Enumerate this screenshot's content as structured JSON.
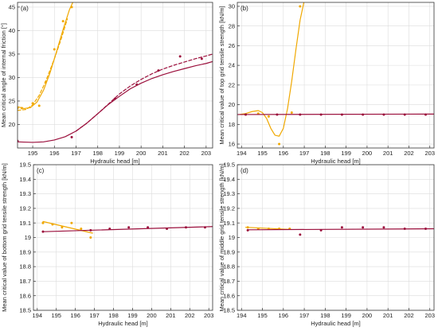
{
  "colors": {
    "dark_red": "#9b0f3c",
    "orange": "#f0a800",
    "axis": "#333333",
    "grid": "#dcdcdc"
  },
  "chart_data": [
    {
      "id": "a",
      "type": "line",
      "panel_label": "(a)",
      "xlabel": "Hydraulic head [m]",
      "ylabel": "Mean critical angle of internal friction [°]",
      "xlim": [
        194.3,
        203.3
      ],
      "ylim": [
        15,
        46
      ],
      "xticks": [
        195,
        196,
        197,
        198,
        199,
        200,
        201,
        202,
        203
      ],
      "yticks": [
        20,
        25,
        30,
        35,
        40,
        45
      ],
      "grid": true,
      "series": [
        {
          "color": "orange",
          "kind": "points",
          "x": [
            194.3,
            194.5,
            195.0,
            195.3,
            195.6,
            196.0,
            196.4,
            196.8
          ],
          "y": [
            23.5,
            23.5,
            24.5,
            24.0,
            29.0,
            36.0,
            42.0,
            45.0
          ]
        },
        {
          "color": "orange",
          "kind": "solid",
          "x": [
            194.3,
            194.6,
            194.9,
            195.2,
            195.5,
            195.8,
            196.1,
            196.4,
            196.7,
            196.9
          ],
          "y": [
            23.8,
            23.4,
            23.6,
            24.8,
            27.3,
            31.0,
            35.5,
            40.2,
            44.5,
            46.5
          ]
        },
        {
          "color": "orange",
          "kind": "dashed",
          "x": [
            194.3,
            194.7,
            195.0,
            195.3,
            195.6,
            196.0,
            196.3,
            196.6
          ],
          "y": [
            23.0,
            23.2,
            24.2,
            26.2,
            29.2,
            34.0,
            38.0,
            42.5
          ]
        },
        {
          "color": "dark_red",
          "kind": "points",
          "x": [
            194.3,
            196.8,
            198.8,
            199.8,
            200.8,
            201.8,
            202.8
          ],
          "y": [
            16.5,
            17.3,
            25.5,
            28.5,
            31.5,
            34.5,
            34.0
          ]
        },
        {
          "color": "dark_red",
          "kind": "solid",
          "x": [
            194.3,
            195.0,
            195.5,
            196.0,
            196.5,
            197.0,
            197.5,
            198.0,
            198.5,
            199.0,
            199.5,
            200.0,
            200.5,
            201.0,
            201.5,
            202.0,
            202.5,
            203.0,
            203.3
          ],
          "y": [
            16.3,
            16.2,
            16.3,
            16.7,
            17.4,
            18.6,
            20.3,
            22.3,
            24.3,
            26.0,
            27.6,
            28.8,
            29.8,
            30.6,
            31.3,
            31.9,
            32.5,
            33.0,
            33.4
          ]
        },
        {
          "color": "dark_red",
          "kind": "dashed",
          "x": [
            197.0,
            197.5,
            198.0,
            198.5,
            199.0,
            199.5,
            200.0,
            200.5,
            201.0,
            201.5,
            202.0,
            202.5,
            203.0,
            203.3
          ],
          "y": [
            18.6,
            20.3,
            22.3,
            24.4,
            26.5,
            28.2,
            29.6,
            30.8,
            31.8,
            32.6,
            33.3,
            34.0,
            34.6,
            35.0
          ]
        }
      ]
    },
    {
      "id": "b",
      "type": "line",
      "panel_label": "(b)",
      "xlabel": "Hydraulic head [m]",
      "ylabel": "Mean critical value of top grid tensile strength [kN/m]",
      "xlim": [
        193.8,
        203.2
      ],
      "ylim": [
        15.6,
        30.4
      ],
      "xticks": [
        194,
        195,
        196,
        197,
        198,
        199,
        200,
        201,
        202,
        203
      ],
      "yticks": [
        16,
        18,
        20,
        22,
        24,
        26,
        28,
        30
      ],
      "grid": true,
      "series": [
        {
          "color": "orange",
          "kind": "points",
          "x": [
            194.2,
            194.8,
            195.3,
            195.8,
            196.4,
            196.8
          ],
          "y": [
            19.0,
            19.1,
            18.8,
            16.0,
            19.2,
            30.0
          ]
        },
        {
          "color": "orange",
          "kind": "solid",
          "x": [
            193.9,
            194.2,
            194.5,
            194.8,
            195.0,
            195.2,
            195.4,
            195.6,
            195.8,
            196.0,
            196.2,
            196.4,
            196.6,
            196.8,
            197.0
          ],
          "y": [
            19.0,
            19.1,
            19.3,
            19.4,
            19.2,
            18.6,
            17.6,
            16.9,
            16.8,
            17.6,
            19.6,
            22.4,
            25.6,
            28.6,
            30.6
          ]
        },
        {
          "color": "dark_red",
          "kind": "points",
          "x": [
            194.2,
            195.7,
            196.8,
            197.8,
            198.8,
            199.8,
            200.8,
            201.8,
            202.8
          ],
          "y": [
            19.0,
            19.0,
            19.0,
            19.0,
            19.0,
            19.0,
            19.0,
            19.0,
            19.0
          ]
        },
        {
          "color": "dark_red",
          "kind": "solid",
          "x": [
            193.8,
            203.2
          ],
          "y": [
            19.0,
            19.05
          ]
        }
      ]
    },
    {
      "id": "c",
      "type": "line",
      "panel_label": "(c)",
      "xlabel": "Hydraulic head [m]",
      "ylabel": "Mean critical value of bottom grid tensile strength [kN/m]",
      "xlim": [
        193.8,
        203.2
      ],
      "ylim": [
        18.5,
        19.5
      ],
      "xticks": [
        194,
        195,
        196,
        197,
        198,
        199,
        200,
        201,
        202,
        203
      ],
      "yticks": [
        18.5,
        18.6,
        18.7,
        18.8,
        18.9,
        19.0,
        19.1,
        19.2,
        19.3,
        19.4,
        19.5
      ],
      "ytick_labels": [
        "18.5",
        "18.6",
        "18.7",
        "18.8",
        "18.9",
        "19",
        "19.1",
        "19.2",
        "19.3",
        "19.4",
        "19.5"
      ],
      "grid": true,
      "series": [
        {
          "color": "orange",
          "kind": "points",
          "x": [
            194.3,
            194.8,
            195.3,
            195.8,
            196.3,
            196.8
          ],
          "y": [
            19.1,
            19.09,
            19.07,
            19.1,
            19.06,
            19.0
          ]
        },
        {
          "color": "orange",
          "kind": "solid",
          "x": [
            194.3,
            196.9
          ],
          "y": [
            19.11,
            19.03
          ]
        },
        {
          "color": "dark_red",
          "kind": "points",
          "x": [
            194.3,
            196.8,
            197.8,
            198.8,
            199.8,
            200.8,
            201.8,
            202.8
          ],
          "y": [
            19.04,
            19.05,
            19.06,
            19.07,
            19.07,
            19.06,
            19.07,
            19.07
          ]
        },
        {
          "color": "dark_red",
          "kind": "solid",
          "x": [
            194.3,
            203.2
          ],
          "y": [
            19.04,
            19.075
          ]
        }
      ]
    },
    {
      "id": "d",
      "type": "line",
      "panel_label": "(d)",
      "xlabel": "Hydraulic head [m]",
      "ylabel": "Mean critical value of middle grid tensile strength [kN/m]",
      "xlim": [
        193.8,
        203.2
      ],
      "ylim": [
        18.5,
        19.5
      ],
      "xticks": [
        194,
        195,
        196,
        197,
        198,
        199,
        200,
        201,
        202,
        203
      ],
      "yticks": [
        18.5,
        18.6,
        18.7,
        18.8,
        18.9,
        19.0,
        19.1,
        19.2,
        19.3,
        19.4,
        19.5
      ],
      "ytick_labels": [
        "18.5",
        "18.6",
        "18.7",
        "18.8",
        "18.9",
        "19",
        "19.1",
        "19.2",
        "19.3",
        "19.4",
        "19.5"
      ],
      "grid": true,
      "series": [
        {
          "color": "orange",
          "kind": "points",
          "x": [
            194.3,
            194.8,
            195.3,
            195.8,
            196.3
          ],
          "y": [
            19.07,
            19.06,
            19.06,
            19.06,
            19.06
          ]
        },
        {
          "color": "orange",
          "kind": "solid",
          "x": [
            194.2,
            196.4
          ],
          "y": [
            19.07,
            19.055
          ]
        },
        {
          "color": "dark_red",
          "kind": "points",
          "x": [
            194.3,
            196.8,
            197.8,
            198.8,
            199.8,
            200.8,
            201.8,
            202.8
          ],
          "y": [
            19.05,
            19.02,
            19.05,
            19.07,
            19.07,
            19.07,
            19.06,
            19.06
          ]
        },
        {
          "color": "dark_red",
          "kind": "solid",
          "x": [
            194.3,
            203.2
          ],
          "y": [
            19.053,
            19.06
          ]
        }
      ]
    }
  ]
}
